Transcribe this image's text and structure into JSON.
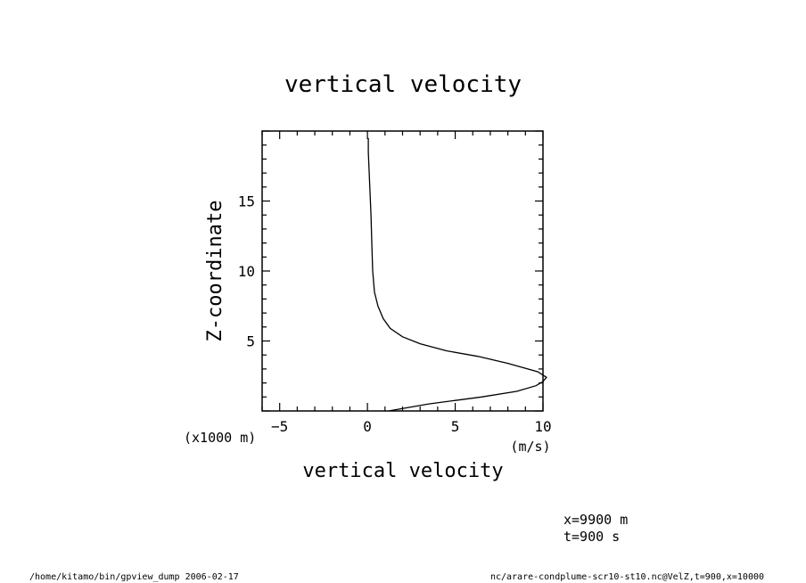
{
  "chart_data": {
    "type": "line",
    "title": "vertical velocity",
    "xlabel": "vertical velocity",
    "xunit": "(m/s)",
    "ylabel": "Z-coordinate",
    "yunit": "(x1000 m)",
    "xlim": [
      -6,
      10
    ],
    "ylim": [
      0,
      20
    ],
    "xticks": [
      -5,
      0,
      5,
      10
    ],
    "yticks": [
      5,
      10,
      15
    ],
    "grid": false,
    "series": [
      {
        "x": [
          1.2,
          3.5,
          6.5,
          8.5,
          9.6,
          10.0,
          10.2,
          9.7,
          8.0,
          6.3,
          4.5,
          3.0,
          2.0,
          1.3,
          0.9,
          0.6,
          0.4,
          0.3,
          0.25,
          0.2,
          0.15,
          0.1,
          0.05,
          0.05
        ],
        "y": [
          0.0,
          0.5,
          1.0,
          1.4,
          1.8,
          2.1,
          2.4,
          2.8,
          3.4,
          3.9,
          4.3,
          4.8,
          5.3,
          5.9,
          6.6,
          7.5,
          8.5,
          10.0,
          12.0,
          14.0,
          15.5,
          17.0,
          18.5,
          19.5
        ]
      }
    ]
  },
  "annotations": {
    "coord_x": "x=9900 m",
    "coord_t": "t=900 s"
  },
  "footer": {
    "left": "/home/kitamo/bin/gpview_dump  2006-02-17",
    "right": "nc/arare-condplume-scr10-st10.nc@VelZ,t=900,x=10000"
  }
}
